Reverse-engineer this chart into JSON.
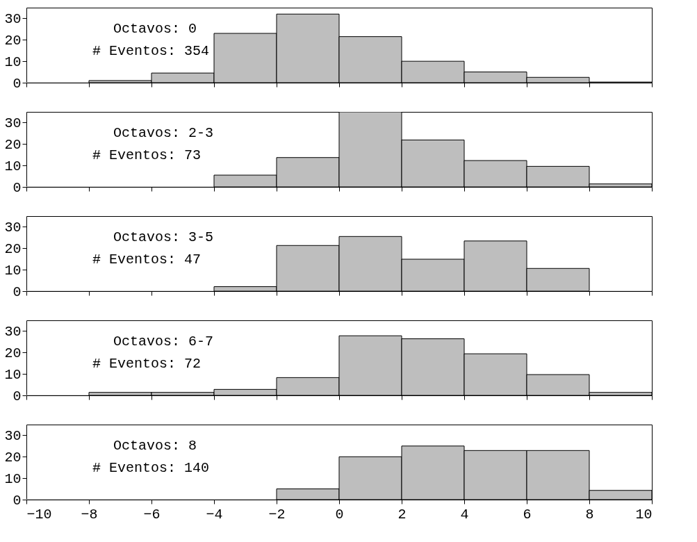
{
  "chart_data": [
    {
      "type": "histogram",
      "bins": [
        -10,
        -8,
        -6,
        -4,
        -2,
        0,
        2,
        4,
        6,
        8,
        10
      ],
      "values": [
        0,
        1,
        4.5,
        23,
        32,
        21.5,
        10,
        5,
        2.5,
        0.3
      ],
      "color": "#bebebe",
      "xlim": [
        -10,
        10
      ],
      "xticks": [
        -10,
        -8,
        -6,
        -4,
        -2,
        0,
        2,
        4,
        6,
        8,
        10
      ],
      "ylim": [
        0,
        35
      ],
      "yticks": [
        0,
        10,
        20,
        30
      ],
      "tick_labels": "y",
      "annotations": [
        "Octavos: 0",
        "# Eventos: 354"
      ]
    },
    {
      "type": "histogram",
      "bins": [
        -10,
        -8,
        -6,
        -4,
        -2,
        0,
        2,
        4,
        6,
        8,
        10
      ],
      "values": [
        0,
        0,
        0,
        5.5,
        13.7,
        35,
        21.9,
        12.3,
        9.6,
        1.4
      ],
      "color": "#bebebe",
      "xlim": [
        -10,
        10
      ],
      "xticks": [
        -10,
        -8,
        -6,
        -4,
        -2,
        0,
        2,
        4,
        6,
        8,
        10
      ],
      "ylim": [
        0,
        35
      ],
      "yticks": [
        0,
        10,
        20,
        30
      ],
      "tick_labels": "y",
      "annotations": [
        "Octavos: 2-3",
        "# Eventos: 73"
      ]
    },
    {
      "type": "histogram",
      "bins": [
        -10,
        -8,
        -6,
        -4,
        -2,
        0,
        2,
        4,
        6,
        8,
        10
      ],
      "values": [
        0,
        0,
        0,
        2.1,
        21.3,
        25.5,
        14.9,
        23.4,
        10.6,
        0
      ],
      "color": "#bebebe",
      "xlim": [
        -10,
        10
      ],
      "xticks": [
        -10,
        -8,
        -6,
        -4,
        -2,
        0,
        2,
        4,
        6,
        8,
        10
      ],
      "ylim": [
        0,
        35
      ],
      "yticks": [
        0,
        10,
        20,
        30
      ],
      "tick_labels": "y",
      "annotations": [
        "Octavos: 3-5",
        "# Eventos: 47"
      ]
    },
    {
      "type": "histogram",
      "bins": [
        -10,
        -8,
        -6,
        -4,
        -2,
        0,
        2,
        4,
        6,
        8,
        10
      ],
      "values": [
        0,
        1.4,
        1.4,
        2.8,
        8.3,
        27.8,
        26.4,
        19.4,
        9.7,
        1.4
      ],
      "color": "#bebebe",
      "xlim": [
        -10,
        10
      ],
      "xticks": [
        -10,
        -8,
        -6,
        -4,
        -2,
        0,
        2,
        4,
        6,
        8,
        10
      ],
      "ylim": [
        0,
        35
      ],
      "yticks": [
        0,
        10,
        20,
        30
      ],
      "tick_labels": "y",
      "annotations": [
        "Octavos: 6-7",
        "# Eventos: 72"
      ]
    },
    {
      "type": "histogram",
      "bins": [
        -10,
        -8,
        -6,
        -4,
        -2,
        0,
        2,
        4,
        6,
        8,
        10
      ],
      "values": [
        0,
        0,
        0,
        0,
        5,
        20,
        25,
        22.9,
        22.9,
        4.3
      ],
      "color": "#bebebe",
      "xlim": [
        -10,
        10
      ],
      "xticks": [
        -10,
        -8,
        -6,
        -4,
        -2,
        0,
        2,
        4,
        6,
        8,
        10
      ],
      "ylim": [
        0,
        35
      ],
      "yticks": [
        0,
        10,
        20,
        30
      ],
      "annotations": [
        "Octavos: 8",
        "# Eventos: 140"
      ]
    }
  ]
}
